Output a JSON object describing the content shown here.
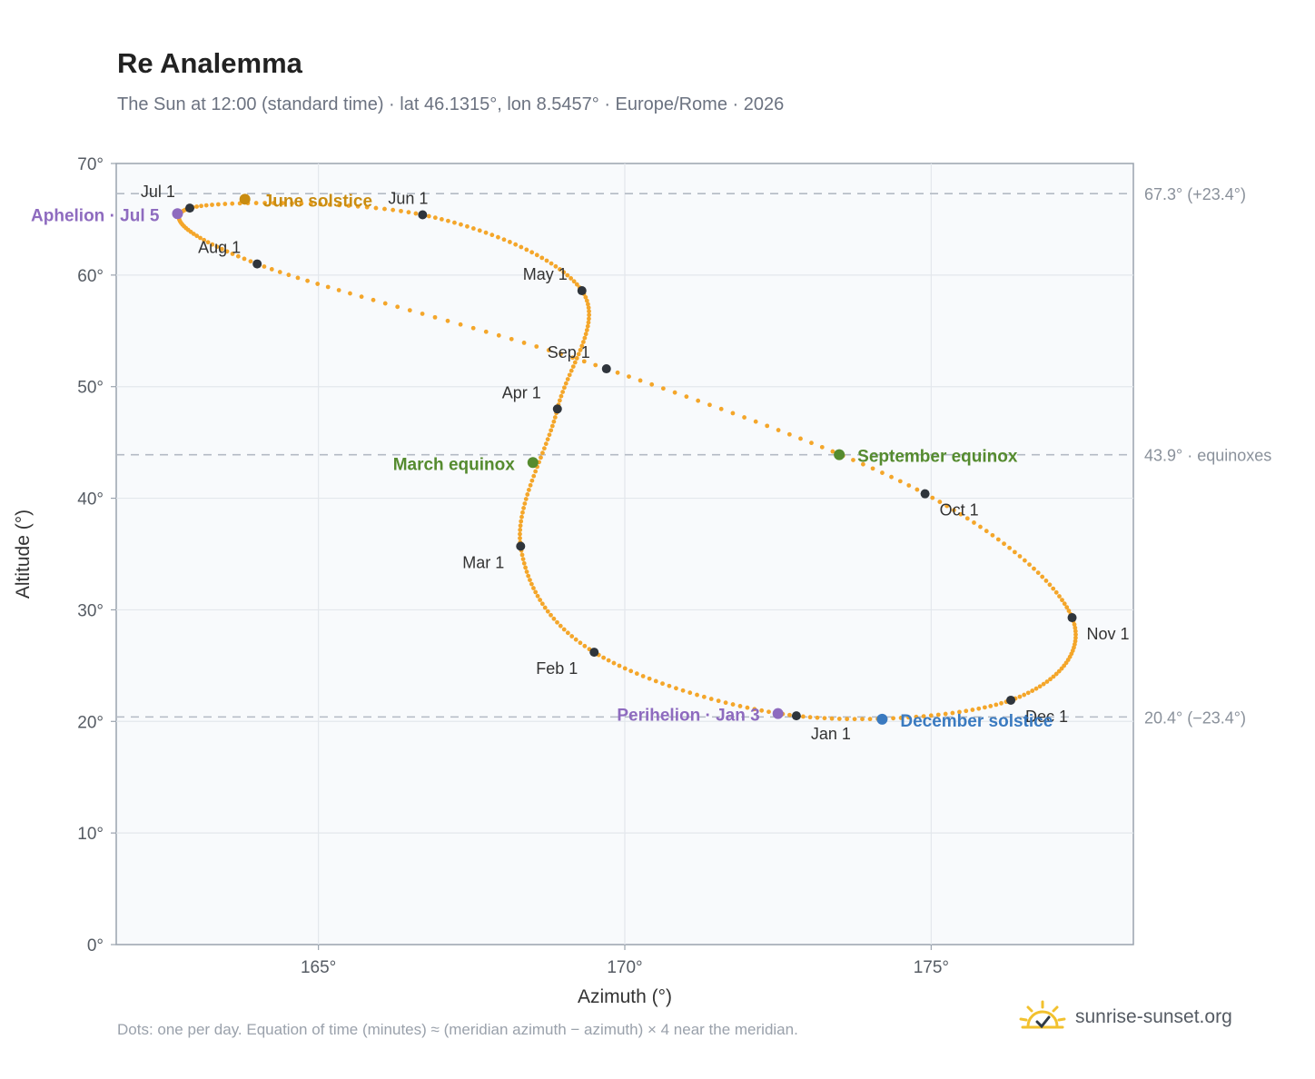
{
  "title": "Re Analemma",
  "subtitle": "The Sun at 12:00 (standard time) · lat 46.1315°, lon 8.5457° · Europe/Rome · 2026",
  "footnote": "Dots: one per day. Equation of time (minutes) ≈ (meridian azimuth − azimuth) × 4 near the meridian.",
  "brand": {
    "text": "sunrise-sunset.org",
    "icon": "sun-logo-icon"
  },
  "chart_data": {
    "type": "scatter",
    "title": "Re Analemma",
    "xlabel": "Azimuth (°)",
    "ylabel": "Altitude (°)",
    "xlim": [
      161.7,
      178.3
    ],
    "ylim": [
      0,
      70
    ],
    "x_ticks": [
      165,
      170,
      175
    ],
    "x_tick_labels": [
      "165°",
      "170°",
      "175°"
    ],
    "y_ticks": [
      0,
      10,
      20,
      30,
      40,
      50,
      60,
      70
    ],
    "y_tick_labels": [
      "0°",
      "10°",
      "20°",
      "30°",
      "40°",
      "50°",
      "60°",
      "70°"
    ],
    "grid": true,
    "daily_dots_color": "#f4a62a",
    "reference_lines": [
      {
        "y": 67.3,
        "label": "67.3° (+23.4°)"
      },
      {
        "y": 43.9,
        "label": "43.9° · equinoxes"
      },
      {
        "y": 20.4,
        "label": "20.4° (−23.4°)"
      }
    ],
    "month_markers": [
      {
        "label": "Jan 1",
        "az": 172.8,
        "alt": 20.5
      },
      {
        "label": "Feb 1",
        "az": 169.5,
        "alt": 26.2
      },
      {
        "label": "Mar 1",
        "az": 168.3,
        "alt": 35.7
      },
      {
        "label": "Apr 1",
        "az": 168.9,
        "alt": 48.0
      },
      {
        "label": "May 1",
        "az": 169.3,
        "alt": 58.6
      },
      {
        "label": "Jun 1",
        "az": 166.7,
        "alt": 65.4
      },
      {
        "label": "Jul 1",
        "az": 162.9,
        "alt": 66.0
      },
      {
        "label": "Aug 1",
        "az": 164.0,
        "alt": 61.0
      },
      {
        "label": "Sep 1",
        "az": 169.7,
        "alt": 51.6
      },
      {
        "label": "Oct 1",
        "az": 174.9,
        "alt": 40.4
      },
      {
        "label": "Nov 1",
        "az": 177.3,
        "alt": 29.3
      },
      {
        "label": "Dec 1",
        "az": 176.3,
        "alt": 21.9
      }
    ],
    "events": [
      {
        "label": "June solstice",
        "az": 163.8,
        "alt": 66.8,
        "color": "#c98c10"
      },
      {
        "label": "Aphelion · Jul 5",
        "az": 162.7,
        "alt": 65.5,
        "color": "#8e6bbf"
      },
      {
        "label": "March equinox",
        "az": 168.5,
        "alt": 43.2,
        "color": "#558b2f"
      },
      {
        "label": "September equinox",
        "az": 173.5,
        "alt": 43.9,
        "color": "#558b2f"
      },
      {
        "label": "Perihelion · Jan 3",
        "az": 172.5,
        "alt": 20.7,
        "color": "#8e6bbf"
      },
      {
        "label": "December solstice",
        "az": 174.2,
        "alt": 20.2,
        "color": "#3a7ac0"
      }
    ]
  }
}
